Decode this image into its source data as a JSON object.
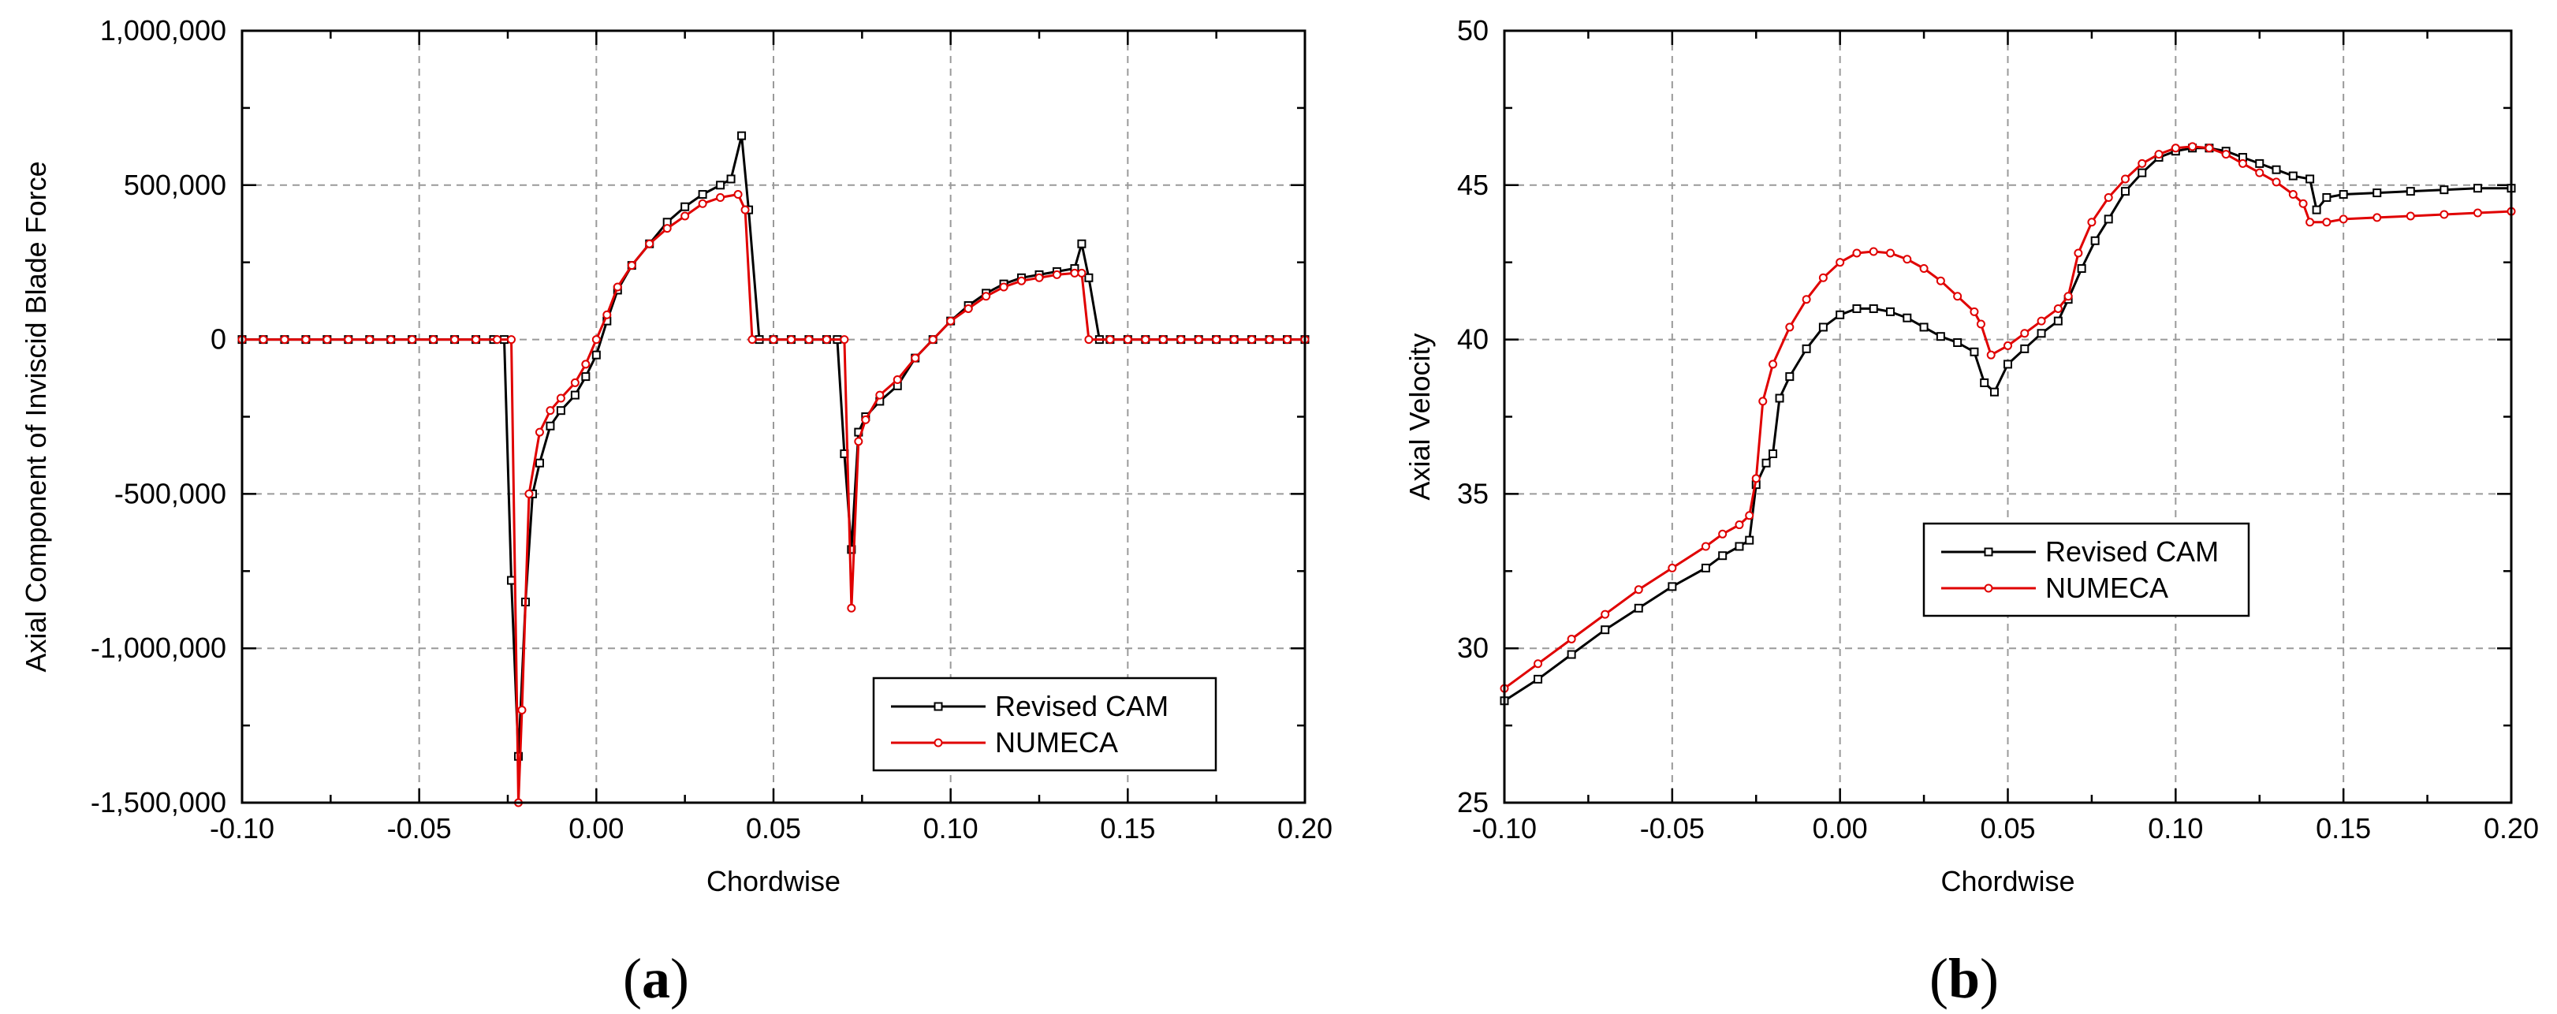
{
  "chart_data": [
    {
      "type": "line",
      "panel_label": "(a)",
      "panel_parts": [
        "(",
        "a",
        ")"
      ],
      "xlabel": "Chordwise",
      "ylabel": "Axial Component of Inviscid Blade Force",
      "xlim": [
        -0.1,
        0.2
      ],
      "ylim": [
        -1500000,
        1000000
      ],
      "xticks": [
        -0.1,
        -0.05,
        0.0,
        0.05,
        0.1,
        0.15,
        0.2
      ],
      "xtick_labels": [
        "-0.10",
        "-0.05",
        "0.00",
        "0.05",
        "0.10",
        "0.15",
        "0.20"
      ],
      "yticks": [
        -1500000,
        -1000000,
        -500000,
        0,
        500000,
        1000000
      ],
      "ytick_labels": [
        "-1,500,000",
        "-1,000,000",
        "-500,000",
        "0",
        "500,000",
        "1,000,000"
      ],
      "grid": true,
      "legend_position": "bottom-right",
      "colors": {
        "Revised CAM": "#000000",
        "NUMECA": "#e00000"
      },
      "series": [
        {
          "name": "Revised CAM",
          "marker": "square",
          "x": [
            -0.1,
            -0.094,
            -0.088,
            -0.082,
            -0.076,
            -0.07,
            -0.064,
            -0.058,
            -0.052,
            -0.046,
            -0.04,
            -0.034,
            -0.029,
            -0.026,
            -0.024,
            -0.022,
            -0.02,
            -0.018,
            -0.016,
            -0.013,
            -0.01,
            -0.006,
            -0.003,
            0.0,
            0.003,
            0.006,
            0.01,
            0.015,
            0.02,
            0.025,
            0.03,
            0.035,
            0.038,
            0.041,
            0.043,
            0.046,
            0.05,
            0.055,
            0.06,
            0.065,
            0.068,
            0.07,
            0.072,
            0.074,
            0.076,
            0.08,
            0.085,
            0.09,
            0.095,
            0.1,
            0.105,
            0.11,
            0.115,
            0.12,
            0.125,
            0.13,
            0.135,
            0.137,
            0.139,
            0.142,
            0.145,
            0.15,
            0.155,
            0.16,
            0.165,
            0.17,
            0.175,
            0.18,
            0.185,
            0.19,
            0.195,
            0.2
          ],
          "y": [
            0,
            0,
            0,
            0,
            0,
            0,
            0,
            0,
            0,
            0,
            0,
            0,
            0,
            0,
            -780000,
            -1350000,
            -850000,
            -500000,
            -400000,
            -280000,
            -230000,
            -180000,
            -120000,
            -50000,
            60000,
            160000,
            240000,
            310000,
            380000,
            430000,
            470000,
            500000,
            520000,
            660000,
            420000,
            0,
            0,
            0,
            0,
            0,
            0,
            -370000,
            -680000,
            -300000,
            -250000,
            -200000,
            -150000,
            -60000,
            0,
            60000,
            110000,
            150000,
            180000,
            200000,
            210000,
            220000,
            230000,
            310000,
            200000,
            0,
            0,
            0,
            0,
            0,
            0,
            0,
            0,
            0,
            0,
            0,
            0,
            0
          ]
        },
        {
          "name": "NUMECA",
          "marker": "circle",
          "x": [
            -0.1,
            -0.094,
            -0.088,
            -0.082,
            -0.076,
            -0.07,
            -0.064,
            -0.058,
            -0.052,
            -0.046,
            -0.04,
            -0.034,
            -0.028,
            -0.024,
            -0.022,
            -0.021,
            -0.019,
            -0.016,
            -0.013,
            -0.01,
            -0.006,
            -0.003,
            0.0,
            0.003,
            0.006,
            0.01,
            0.015,
            0.02,
            0.025,
            0.03,
            0.035,
            0.04,
            0.042,
            0.044,
            0.05,
            0.055,
            0.06,
            0.065,
            0.07,
            0.072,
            0.074,
            0.076,
            0.08,
            0.085,
            0.09,
            0.095,
            0.1,
            0.105,
            0.11,
            0.115,
            0.12,
            0.125,
            0.13,
            0.135,
            0.137,
            0.139,
            0.145,
            0.15,
            0.155,
            0.16,
            0.165,
            0.17,
            0.175,
            0.18,
            0.185,
            0.19,
            0.195,
            0.2
          ],
          "y": [
            0,
            0,
            0,
            0,
            0,
            0,
            0,
            0,
            0,
            0,
            0,
            0,
            0,
            0,
            -1500000,
            -1200000,
            -500000,
            -300000,
            -230000,
            -190000,
            -140000,
            -80000,
            0,
            80000,
            170000,
            240000,
            310000,
            360000,
            400000,
            440000,
            460000,
            470000,
            420000,
            0,
            0,
            0,
            0,
            0,
            0,
            -870000,
            -330000,
            -260000,
            -180000,
            -130000,
            -60000,
            0,
            60000,
            100000,
            140000,
            170000,
            190000,
            200000,
            210000,
            215000,
            215000,
            0,
            0,
            0,
            0,
            0,
            0,
            0,
            0,
            0,
            0,
            0,
            0,
            0
          ]
        }
      ]
    },
    {
      "type": "line",
      "panel_label": "(b)",
      "panel_parts": [
        "(",
        "b",
        ")"
      ],
      "xlabel": "Chordwise",
      "ylabel": "Axial Velocity",
      "xlim": [
        -0.1,
        0.2
      ],
      "ylim": [
        25,
        50
      ],
      "xticks": [
        -0.1,
        -0.05,
        0.0,
        0.05,
        0.1,
        0.15,
        0.2
      ],
      "xtick_labels": [
        "-0.10",
        "-0.05",
        "0.00",
        "0.05",
        "0.10",
        "0.15",
        "0.20"
      ],
      "yticks": [
        25,
        30,
        35,
        40,
        45,
        50
      ],
      "ytick_labels": [
        "25",
        "30",
        "35",
        "40",
        "45",
        "50"
      ],
      "grid": true,
      "legend_position": "center-right",
      "colors": {
        "Revised CAM": "#000000",
        "NUMECA": "#e00000"
      },
      "series": [
        {
          "name": "Revised CAM",
          "marker": "square",
          "x": [
            -0.1,
            -0.09,
            -0.08,
            -0.07,
            -0.06,
            -0.05,
            -0.04,
            -0.035,
            -0.03,
            -0.027,
            -0.025,
            -0.022,
            -0.02,
            -0.018,
            -0.015,
            -0.01,
            -0.005,
            0.0,
            0.005,
            0.01,
            0.015,
            0.02,
            0.025,
            0.03,
            0.035,
            0.04,
            0.043,
            0.046,
            0.05,
            0.055,
            0.06,
            0.065,
            0.068,
            0.072,
            0.076,
            0.08,
            0.085,
            0.09,
            0.095,
            0.1,
            0.105,
            0.11,
            0.115,
            0.12,
            0.125,
            0.13,
            0.135,
            0.14,
            0.142,
            0.145,
            0.15,
            0.16,
            0.17,
            0.18,
            0.19,
            0.2
          ],
          "y": [
            28.3,
            29.0,
            29.8,
            30.6,
            31.3,
            32.0,
            32.6,
            33.0,
            33.3,
            33.5,
            35.3,
            36.0,
            36.3,
            38.1,
            38.8,
            39.7,
            40.4,
            40.8,
            41.0,
            41.0,
            40.9,
            40.7,
            40.4,
            40.1,
            39.9,
            39.6,
            38.6,
            38.3,
            39.2,
            39.7,
            40.2,
            40.6,
            41.3,
            42.3,
            43.2,
            43.9,
            44.8,
            45.4,
            45.9,
            46.1,
            46.2,
            46.2,
            46.1,
            45.9,
            45.7,
            45.5,
            45.3,
            45.2,
            44.2,
            44.6,
            44.7,
            44.75,
            44.8,
            44.85,
            44.9,
            44.9
          ]
        },
        {
          "name": "NUMECA",
          "marker": "circle",
          "x": [
            -0.1,
            -0.09,
            -0.08,
            -0.07,
            -0.06,
            -0.05,
            -0.04,
            -0.035,
            -0.03,
            -0.027,
            -0.025,
            -0.023,
            -0.02,
            -0.015,
            -0.01,
            -0.005,
            0.0,
            0.005,
            0.01,
            0.015,
            0.02,
            0.025,
            0.03,
            0.035,
            0.04,
            0.042,
            0.045,
            0.05,
            0.055,
            0.06,
            0.065,
            0.068,
            0.071,
            0.075,
            0.08,
            0.085,
            0.09,
            0.095,
            0.1,
            0.105,
            0.11,
            0.115,
            0.12,
            0.125,
            0.13,
            0.135,
            0.138,
            0.14,
            0.145,
            0.15,
            0.16,
            0.17,
            0.18,
            0.19,
            0.2
          ],
          "y": [
            28.7,
            29.5,
            30.3,
            31.1,
            31.9,
            32.6,
            33.3,
            33.7,
            34.0,
            34.3,
            35.5,
            38.0,
            39.2,
            40.4,
            41.3,
            42.0,
            42.5,
            42.8,
            42.85,
            42.8,
            42.6,
            42.3,
            41.9,
            41.4,
            40.9,
            40.5,
            39.5,
            39.8,
            40.2,
            40.6,
            41.0,
            41.4,
            42.8,
            43.8,
            44.6,
            45.2,
            45.7,
            46.0,
            46.2,
            46.25,
            46.2,
            46.0,
            45.7,
            45.4,
            45.1,
            44.7,
            44.4,
            43.8,
            43.8,
            43.9,
            43.95,
            44.0,
            44.05,
            44.1,
            44.15
          ]
        }
      ]
    }
  ]
}
